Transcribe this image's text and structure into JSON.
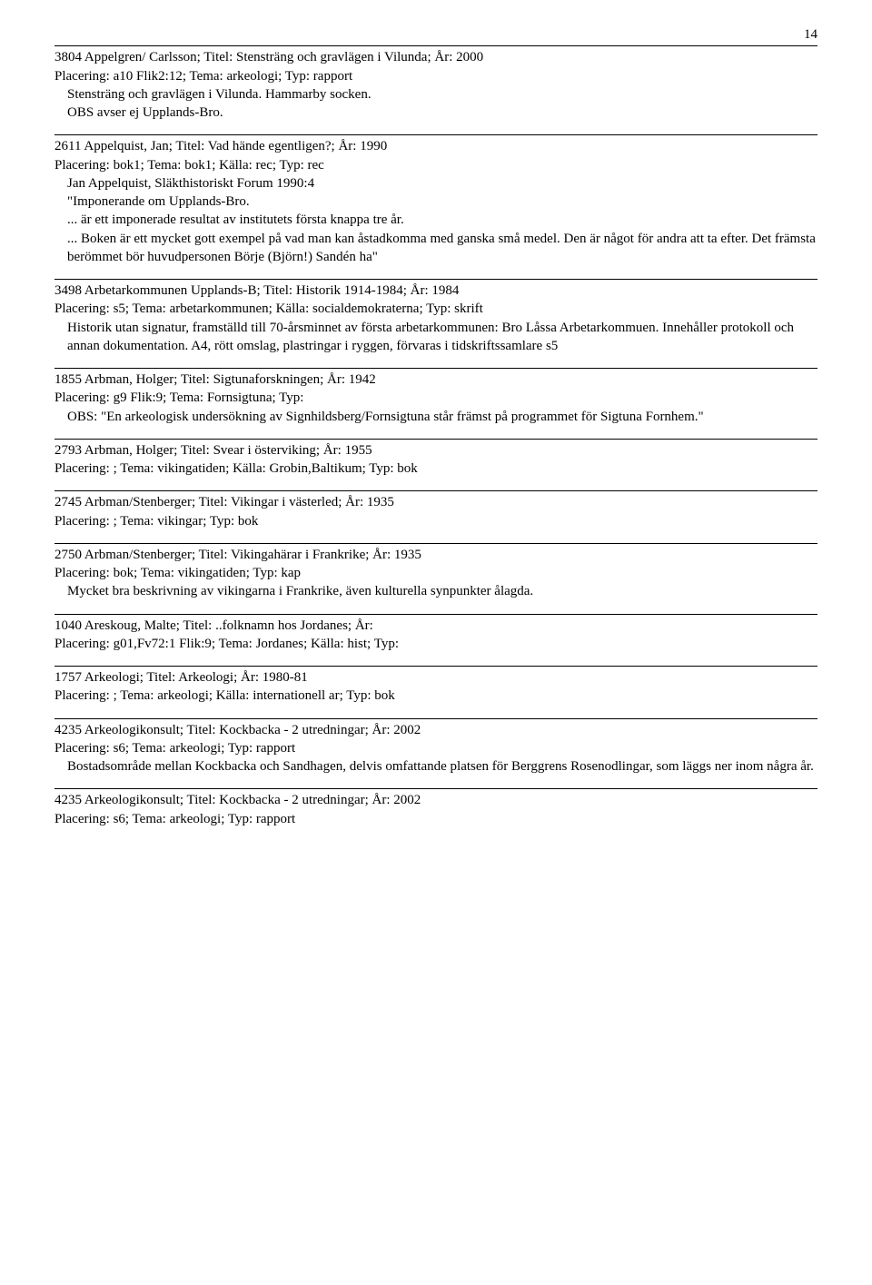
{
  "page_number": "14",
  "entries": [
    {
      "header": "3804  Appelgren/ Carlsson;   Titel: Stensträng och gravlägen i Vilunda;   År: 2000",
      "placement": "Placering: a10  Flik2:12;  Tema: arkeologi;  Typ: rapport",
      "desc": [
        "Stensträng och gravlägen i Vilunda. Hammarby socken.",
        "OBS avser ej Upplands-Bro."
      ]
    },
    {
      "header": "2611  Appelquist, Jan;   Titel: Vad hände egentligen?;   År: 1990",
      "placement": "Placering: bok1;  Tema: bok1;  Källa: rec;  Typ: rec",
      "desc": [
        "Jan Appelquist, Släkthistoriskt Forum 1990:4",
        "\"Imponerande om Upplands-Bro.",
        "... är ett imponerade resultat av institutets första knappa tre år.",
        "... Boken är ett mycket gott exempel på vad man kan åstadkomma med ganska små medel. Den är något för andra att ta efter. Det främsta berömmet bör huvudpersonen Börje (Björn!) Sandén ha\""
      ]
    },
    {
      "header": "3498  Arbetarkommunen Upplands-B;   Titel: Historik 1914-1984;   År: 1984",
      "placement": "Placering: s5;  Tema: arbetarkommunen;  Källa: socialdemokraterna;  Typ: skrift",
      "desc": [
        "Historik utan signatur, framställd till 70-årsminnet av första arbetarkommunen: Bro Låssa Arbetarkommuen. Innehåller protokoll och annan dokumentation. A4, rött omslag, plastringar i ryggen, förvaras i tidskriftssamlare s5"
      ]
    },
    {
      "header": "1855  Arbman, Holger;   Titel: Sigtunaforskningen;   År: 1942",
      "placement": "Placering: g9  Flik:9;  Tema: Fornsigtuna;  Typ:",
      "desc": [
        "OBS: \"En arkeologisk undersökning av Signhildsberg/Fornsigtuna står främst på programmet för Sigtuna Fornhem.\""
      ]
    },
    {
      "header": "2793  Arbman, Holger;   Titel: Svear i österviking;   År: 1955",
      "placement": "Placering: ;  Tema: vikingatiden;  Källa: Grobin,Baltikum;  Typ: bok",
      "desc": []
    },
    {
      "header": "2745  Arbman/Stenberger;   Titel: Vikingar i västerled;   År: 1935",
      "placement": "Placering: ;  Tema: vikingar;  Typ: bok",
      "desc": []
    },
    {
      "header": "2750  Arbman/Stenberger;   Titel: Vikingahärar i Frankrike;   År: 1935",
      "placement": "Placering: bok;  Tema: vikingatiden;  Typ: kap",
      "desc": [
        "Mycket bra beskrivning av vikingarna i Frankrike, även kulturella synpunkter ålagda."
      ]
    },
    {
      "header": "1040  Areskoug, Malte;   Titel: ..folknamn hos Jordanes;   År:",
      "placement": "Placering: g01,Fv72:1  Flik:9;  Tema: Jordanes;  Källa: hist;  Typ:",
      "desc": []
    },
    {
      "header": "1757  Arkeologi;   Titel: Arkeologi;   År: 1980-81",
      "placement": "Placering: ;  Tema: arkeologi;  Källa: internationell ar;  Typ: bok",
      "desc": []
    },
    {
      "header": "4235  Arkeologikonsult;   Titel: Kockbacka - 2 utredningar;   År: 2002",
      "placement": "Placering: s6;  Tema: arkeologi;  Typ: rapport",
      "desc": [
        "Bostadsområde mellan Kockbacka och Sandhagen, delvis omfattande platsen för Berggrens Rosenodlingar, som läggs ner inom några år."
      ]
    },
    {
      "header": "4235  Arkeologikonsult;   Titel: Kockbacka - 2 utredningar;   År: 2002",
      "placement": "Placering: s6;  Tema: arkeologi;  Typ: rapport",
      "desc": []
    }
  ]
}
